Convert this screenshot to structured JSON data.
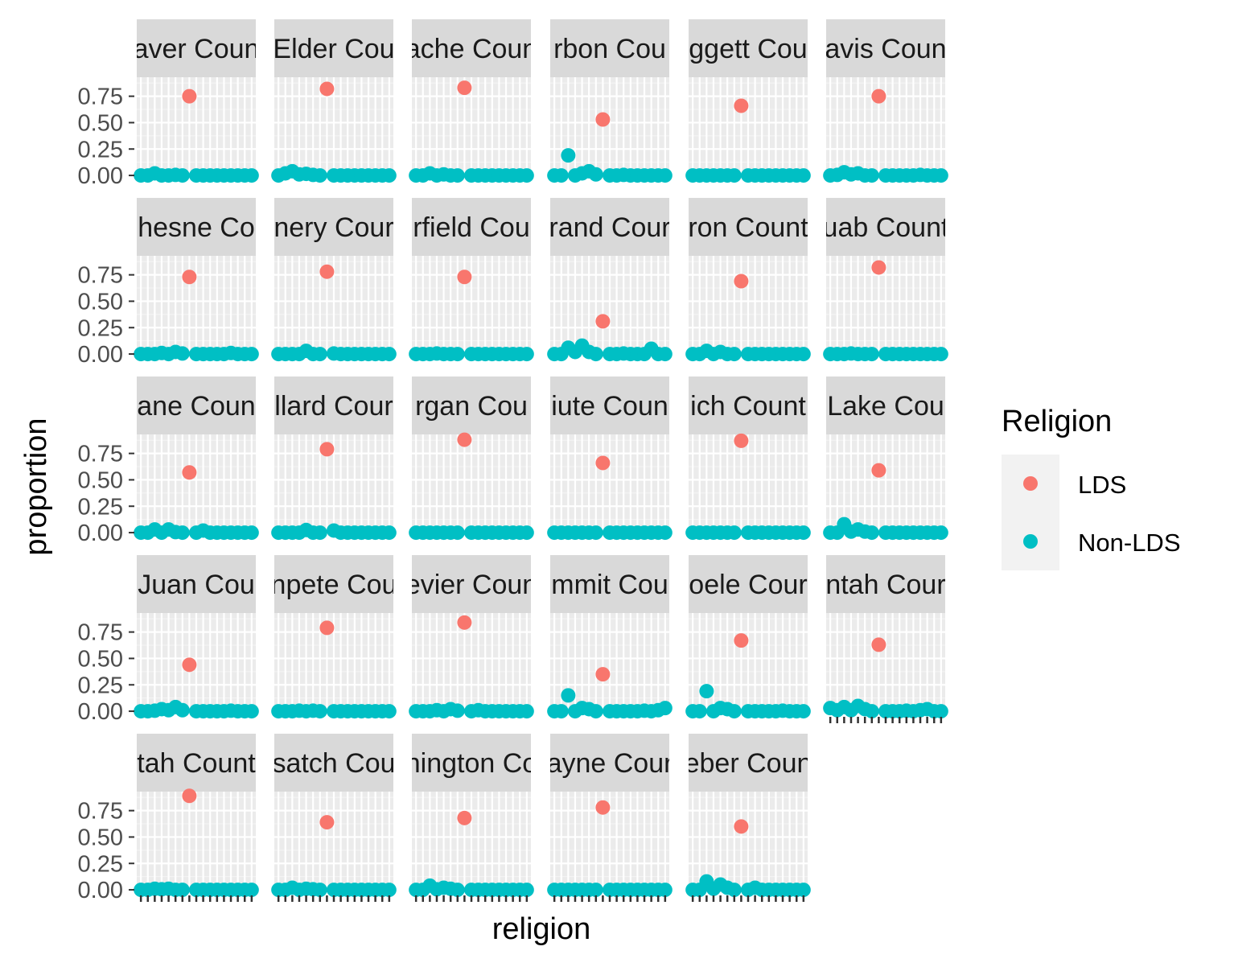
{
  "chart_data": {
    "type": "scatter",
    "facet": "county",
    "xlabel": "religion",
    "ylabel": "proportion",
    "ylim": [
      -0.03,
      0.93
    ],
    "yticks": [
      {
        "value": 0.0,
        "label": "0.00"
      },
      {
        "value": 0.25,
        "label": "0.25"
      },
      {
        "value": 0.5,
        "label": "0.50"
      },
      {
        "value": 0.75,
        "label": "0.75"
      }
    ],
    "x_category_count": 17,
    "legend": {
      "title": "Religion",
      "position": "right",
      "entries": [
        {
          "key": "LDS",
          "label": "LDS",
          "color": "#F8766D"
        },
        {
          "key": "Non-LDS",
          "label": "Non-LDS",
          "color": "#00BFC4"
        }
      ]
    },
    "grid": true,
    "panel_background": "#EBEBEB",
    "strip_background": "#D9D9D9",
    "panels": [
      {
        "strip": "aver Coun",
        "lds": 0.75,
        "nonlds": [
          0,
          0,
          0.02,
          0,
          0,
          0.005,
          0,
          null,
          0,
          0,
          0,
          0,
          0,
          0,
          0,
          0,
          0
        ]
      },
      {
        "strip": "Elder Cou",
        "lds": 0.82,
        "nonlds": [
          0,
          0.02,
          0.04,
          0.01,
          0.015,
          0.005,
          0,
          null,
          0,
          0,
          0,
          0,
          0,
          0,
          0,
          0,
          0
        ]
      },
      {
        "strip": "ache Coun",
        "lds": 0.83,
        "nonlds": [
          0,
          0,
          0.02,
          0,
          0.01,
          0,
          0,
          null,
          0,
          0,
          0,
          0,
          0,
          0,
          0,
          0,
          0
        ]
      },
      {
        "strip": "rbon Cou",
        "lds": 0.53,
        "nonlds": [
          0,
          0,
          0.19,
          0,
          0.02,
          0.04,
          0.01,
          null,
          0,
          0,
          0.005,
          0,
          0,
          0,
          0,
          0,
          0
        ]
      },
      {
        "strip": "ggett Cou",
        "lds": 0.66,
        "nonlds": [
          0,
          0,
          0,
          0,
          0,
          0,
          0,
          null,
          0,
          0,
          0,
          0,
          0,
          0,
          0,
          0,
          0
        ]
      },
      {
        "strip": "avis Coun",
        "lds": 0.75,
        "nonlds": [
          0,
          0.005,
          0.03,
          0.01,
          0.02,
          0,
          0,
          null,
          0,
          0,
          0,
          0,
          0,
          0.005,
          0,
          0,
          0
        ]
      },
      {
        "strip": "hesne Co",
        "lds": 0.73,
        "nonlds": [
          0,
          0,
          0,
          0.01,
          0,
          0.02,
          0.005,
          null,
          0,
          0,
          0,
          0,
          0,
          0.01,
          0,
          0,
          0
        ]
      },
      {
        "strip": "nery Cour",
        "lds": 0.78,
        "nonlds": [
          0,
          0,
          0,
          0,
          0.03,
          0,
          0,
          null,
          0.005,
          0,
          0,
          0,
          0,
          0,
          0,
          0,
          0
        ]
      },
      {
        "strip": "rfield Cou",
        "lds": 0.73,
        "nonlds": [
          0,
          0,
          0,
          0.005,
          0,
          0,
          0,
          null,
          0,
          0,
          0,
          0,
          0,
          0,
          0,
          0,
          0
        ]
      },
      {
        "strip": "rand Cour",
        "lds": 0.31,
        "nonlds": [
          0,
          0,
          0.06,
          0.02,
          0.08,
          0.02,
          0,
          null,
          0,
          0,
          0.005,
          0,
          0,
          0,
          0.05,
          0,
          0
        ]
      },
      {
        "strip": "ron Count",
        "lds": 0.69,
        "nonlds": [
          0,
          0,
          0.03,
          0,
          0.02,
          0,
          0,
          null,
          0,
          0,
          0,
          0,
          0,
          0,
          0,
          0,
          0
        ]
      },
      {
        "strip": "uab Count",
        "lds": 0.82,
        "nonlds": [
          0,
          0,
          0,
          0.005,
          0,
          0,
          0,
          null,
          0,
          0,
          0,
          0,
          0,
          0,
          0,
          0,
          0
        ]
      },
      {
        "strip": "ane Coun",
        "lds": 0.57,
        "nonlds": [
          0,
          0,
          0.03,
          0,
          0.03,
          0.005,
          0,
          null,
          0,
          0.02,
          0,
          0,
          0,
          0,
          0,
          0,
          0
        ]
      },
      {
        "strip": "llard Cour",
        "lds": 0.79,
        "nonlds": [
          0,
          0,
          0,
          0,
          0.025,
          0,
          0,
          null,
          0.02,
          0,
          0,
          0,
          0,
          0,
          0,
          0,
          0
        ]
      },
      {
        "strip": "rgan Cou",
        "lds": 0.88,
        "nonlds": [
          0,
          0,
          0,
          0,
          0,
          0,
          0,
          null,
          0,
          0,
          0,
          0,
          0,
          0,
          0,
          0,
          0
        ]
      },
      {
        "strip": "iute Coun",
        "lds": 0.66,
        "nonlds": [
          0,
          0,
          0,
          0,
          0,
          0,
          0,
          null,
          0,
          0,
          0,
          0,
          0,
          0,
          0,
          0,
          0
        ]
      },
      {
        "strip": "ich Count",
        "lds": 0.87,
        "nonlds": [
          0,
          0,
          0,
          0,
          0,
          0,
          0,
          null,
          0,
          0,
          0,
          0,
          0,
          0,
          0,
          0,
          0
        ]
      },
      {
        "strip": "Lake Cou",
        "lds": 0.59,
        "nonlds": [
          0,
          0,
          0.08,
          0.01,
          0.03,
          0.01,
          0,
          null,
          0,
          0,
          0,
          0,
          0,
          0,
          0,
          0,
          0
        ]
      },
      {
        "strip": "Juan Cou",
        "lds": 0.44,
        "nonlds": [
          0,
          0,
          0.005,
          0.02,
          0.01,
          0.04,
          0.01,
          null,
          0,
          0,
          0,
          0,
          0,
          0.005,
          0,
          0,
          0
        ]
      },
      {
        "strip": "npete Cou",
        "lds": 0.79,
        "nonlds": [
          0,
          0,
          0,
          0.005,
          0,
          0.005,
          0,
          null,
          0,
          0,
          0,
          0,
          0,
          0,
          0,
          0,
          0
        ]
      },
      {
        "strip": "evier Coun",
        "lds": 0.84,
        "nonlds": [
          0,
          0,
          0,
          0.01,
          0,
          0.02,
          0.005,
          null,
          0,
          0.01,
          0,
          0,
          0,
          0,
          0,
          0,
          0
        ]
      },
      {
        "strip": "mmit Cou",
        "lds": 0.35,
        "nonlds": [
          0,
          0,
          0.15,
          0,
          0.03,
          0.02,
          0,
          null,
          0,
          0,
          0,
          0,
          0,
          0.005,
          0,
          0.01,
          0.03
        ]
      },
      {
        "strip": "oele Cour",
        "lds": 0.67,
        "nonlds": [
          0,
          0,
          0.19,
          0,
          0.03,
          0.02,
          0,
          null,
          0,
          0,
          0,
          0,
          0,
          0.005,
          0,
          0,
          0
        ]
      },
      {
        "strip": "ntah Cour",
        "lds": 0.63,
        "nonlds": [
          0.03,
          0.01,
          0.04,
          0.01,
          0.05,
          0.02,
          0,
          null,
          0,
          0,
          0,
          0.005,
          0,
          0.01,
          0.02,
          0,
          0
        ]
      },
      {
        "strip": "tah Count",
        "lds": 0.89,
        "nonlds": [
          0,
          0,
          0.01,
          0.005,
          0.01,
          0,
          0,
          null,
          0,
          0,
          0,
          0,
          0,
          0,
          0,
          0,
          0
        ]
      },
      {
        "strip": "satch Cou",
        "lds": 0.64,
        "nonlds": [
          0,
          0,
          0.02,
          0,
          0.01,
          0.005,
          0,
          null,
          0,
          0,
          0,
          0,
          0,
          0,
          0,
          0,
          0
        ]
      },
      {
        "strip": "nington Co",
        "lds": 0.68,
        "nonlds": [
          0,
          0,
          0.04,
          0.005,
          0.02,
          0.01,
          0,
          null,
          0,
          0,
          0,
          0,
          0,
          0,
          0,
          0,
          0
        ]
      },
      {
        "strip": "ayne Cour",
        "lds": 0.78,
        "nonlds": [
          0,
          0,
          0,
          0,
          0,
          0,
          0,
          null,
          0,
          0,
          0,
          0,
          0,
          0,
          0,
          0,
          0
        ]
      },
      {
        "strip": "eber Coun",
        "lds": 0.6,
        "nonlds": [
          0,
          0,
          0.08,
          0.01,
          0.05,
          0.02,
          0,
          null,
          0,
          0.02,
          0,
          0,
          0,
          0,
          0,
          0,
          0
        ]
      }
    ]
  }
}
